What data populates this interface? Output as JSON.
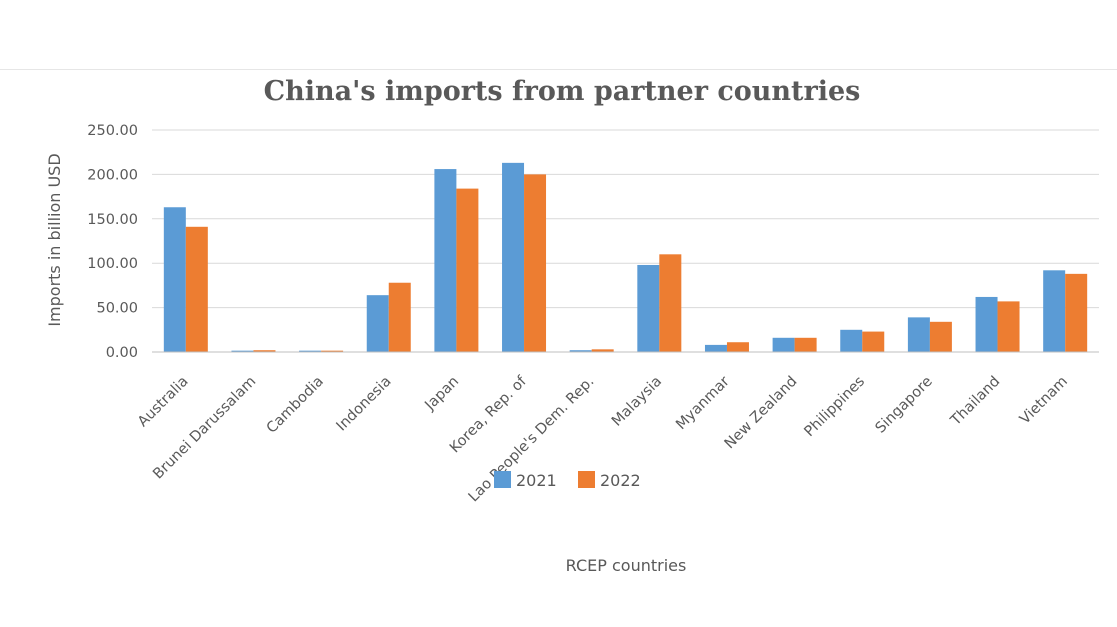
{
  "chart_data": {
    "type": "bar",
    "title": "China's imports from partner countries",
    "xlabel": "RCEP countries",
    "ylabel": "Imports in billion USD",
    "ylim": [
      0,
      250
    ],
    "yticks": [
      "0.00",
      "50.00",
      "100.00",
      "150.00",
      "200.00",
      "250.00"
    ],
    "grid": true,
    "legend_position": "bottom",
    "categories": [
      "Australia",
      "Brunei Darussalam",
      "Cambodia",
      "Indonesia",
      "Japan",
      "Korea, Rep. of",
      "Lao People's Dem. Rep.",
      "Malaysia",
      "Myanmar",
      "New Zealand",
      "Philippines",
      "Singapore",
      "Thailand",
      "Vietnam"
    ],
    "series": [
      {
        "name": "2021",
        "color": "#5b9bd5",
        "values": [
          163,
          1.5,
          1.5,
          64,
          206,
          213,
          2,
          98,
          8,
          16,
          25,
          39,
          62,
          92
        ]
      },
      {
        "name": "2022",
        "color": "#ed7d31",
        "values": [
          141,
          2,
          1.5,
          78,
          184,
          200,
          3,
          110,
          11,
          16,
          23,
          34,
          57,
          88
        ]
      }
    ]
  }
}
